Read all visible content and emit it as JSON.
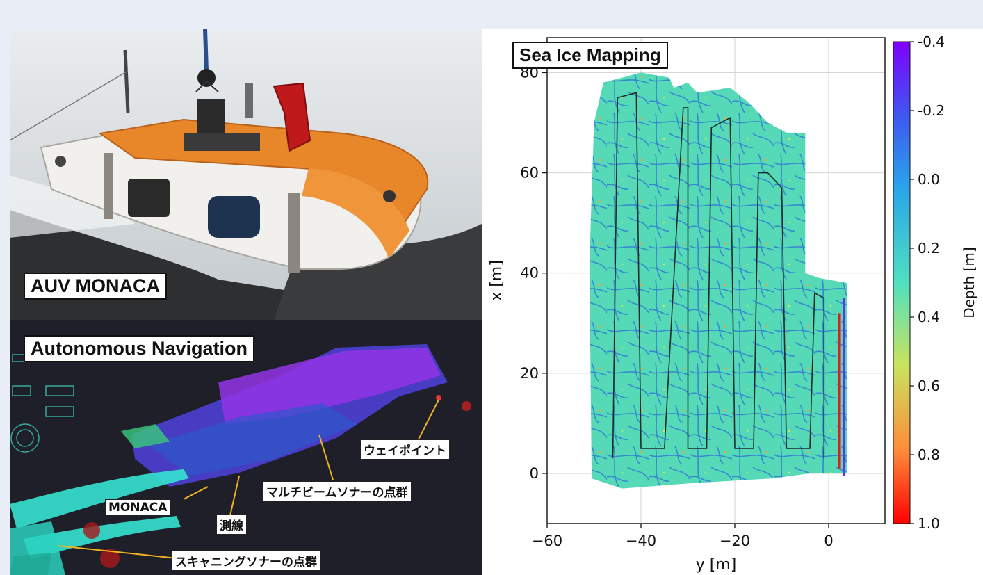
{
  "photo": {
    "label": "AUV MONACA"
  },
  "navigation": {
    "label": "Autonomous Navigation",
    "annotations": {
      "waypoint": "ウェイポイント",
      "multibeam": "マルチビームソナーの点群",
      "monaca": "MONACA",
      "survey_line": "測線",
      "scanning_sonar": "スキャニングソナーの点群"
    }
  },
  "chart_data": {
    "type": "heatmap",
    "title": "Sea Ice Mapping",
    "xlabel": "y [m]",
    "ylabel": "x [m]",
    "xticks": [
      "−60",
      "−40",
      "−20",
      "0"
    ],
    "yticks": [
      "0",
      "20",
      "40",
      "60",
      "80"
    ],
    "xlim": [
      -60,
      12
    ],
    "ylim": [
      -10,
      87
    ],
    "grid": true,
    "colorbar": {
      "label": "Depth [m]",
      "ticks": [
        "-0.4",
        "-0.2",
        "0.0",
        "0.2",
        "0.4",
        "0.6",
        "0.8",
        "1.0"
      ],
      "range": [
        -0.4,
        1.0
      ],
      "colormap": "rainbow"
    },
    "track": [
      [
        -46,
        3
      ],
      [
        -45,
        75
      ],
      [
        -41,
        76
      ],
      [
        -40,
        5
      ],
      [
        -35,
        5
      ],
      [
        -31,
        73
      ],
      [
        -30,
        73
      ],
      [
        -30,
        5
      ],
      [
        -26,
        5
      ],
      [
        -25,
        69
      ],
      [
        -21,
        71
      ],
      [
        -20,
        5
      ],
      [
        -16,
        5
      ],
      [
        -15,
        60
      ],
      [
        -13,
        60
      ],
      [
        -10,
        57
      ],
      [
        -9,
        5
      ],
      [
        -4,
        5
      ],
      [
        -3,
        36
      ],
      [
        -1,
        35
      ],
      [
        -1,
        3
      ]
    ]
  }
}
